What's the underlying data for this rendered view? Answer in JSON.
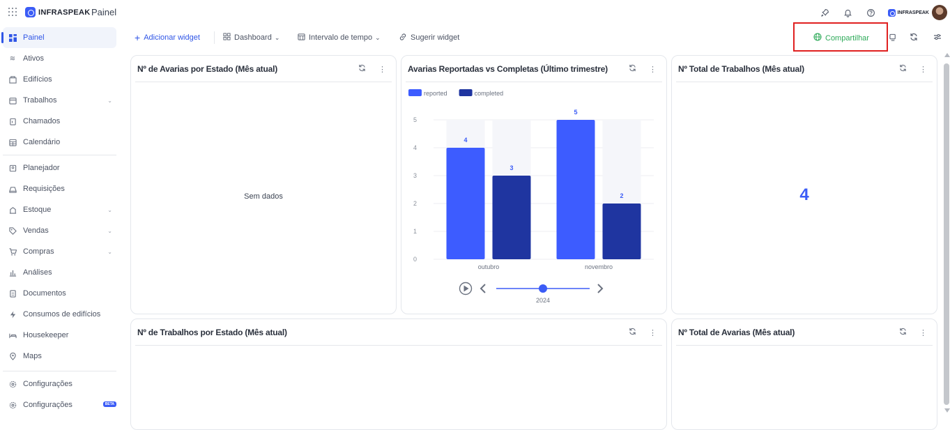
{
  "topbar": {
    "brand": "INFRASPEAK",
    "app_title": "Painel",
    "mini_brand": "INFRASPEAK",
    "icons": [
      "apps-grid-icon",
      "rocket-icon",
      "bell-icon",
      "help-icon"
    ]
  },
  "sidebar": {
    "items": [
      {
        "label": "Painel",
        "icon": "dashboard-icon",
        "active": true
      },
      {
        "label": "Ativos",
        "icon": "assets-icon"
      },
      {
        "label": "Edifícios",
        "icon": "building-icon"
      },
      {
        "label": "Trabalhos",
        "icon": "calendar-icon",
        "expandable": true
      },
      {
        "label": "Chamados",
        "icon": "clipboard-icon"
      },
      {
        "label": "Calendário",
        "icon": "calendar-grid-icon"
      },
      {
        "label": "Planejador",
        "icon": "planner-icon"
      },
      {
        "label": "Requisições",
        "icon": "tray-icon"
      },
      {
        "label": "Estoque",
        "icon": "stock-icon",
        "expandable": true
      },
      {
        "label": "Vendas",
        "icon": "tag-icon",
        "expandable": true
      },
      {
        "label": "Compras",
        "icon": "cart-icon",
        "expandable": true
      },
      {
        "label": "Análises",
        "icon": "chart-icon"
      },
      {
        "label": "Documentos",
        "icon": "document-icon"
      },
      {
        "label": "Consumos de edifícios",
        "icon": "bolt-icon"
      },
      {
        "label": "Housekeeper",
        "icon": "bed-icon"
      },
      {
        "label": "Maps",
        "icon": "pin-icon"
      },
      {
        "label": "Configurações",
        "icon": "gear-icon"
      },
      {
        "label": "Configurações",
        "icon": "gear-icon",
        "badge": "BETA"
      }
    ]
  },
  "toolbar": {
    "add_widget": "Adicionar widget",
    "dashboard": "Dashboard",
    "time_interval": "Intervalo de tempo",
    "suggest_widget": "Sugerir widget",
    "share": "Compartilhar"
  },
  "widgets": {
    "breakdowns_by_state": {
      "title": "Nº de Avarias por Estado (Mês atual)",
      "empty": "Sem dados"
    },
    "reported_vs_completed": {
      "title": "Avarias Reportadas vs Completas (Último trimestre)",
      "year": "2024"
    },
    "total_jobs": {
      "title": "Nº Total de Trabalhos (Mês atual)",
      "value": "4"
    },
    "jobs_by_state": {
      "title": "Nº de Trabalhos por Estado (Mês atual)"
    },
    "total_breakdowns": {
      "title": "Nº Total de Avarias (Mês atual)"
    }
  },
  "chart_data": {
    "type": "bar",
    "title": "Avarias Reportadas vs Completas (Último trimestre)",
    "categories": [
      "outubro",
      "novembro"
    ],
    "series": [
      {
        "name": "reported",
        "values": [
          4,
          5
        ],
        "color": "#3d5cff"
      },
      {
        "name": "completed",
        "values": [
          3,
          2
        ],
        "color": "#1f35a0"
      }
    ],
    "ylim": [
      0,
      5
    ],
    "yticks": [
      "0",
      "1",
      "2",
      "3",
      "4",
      "5"
    ],
    "grid": true,
    "legend": "top-left",
    "timeline_label": "2024"
  }
}
